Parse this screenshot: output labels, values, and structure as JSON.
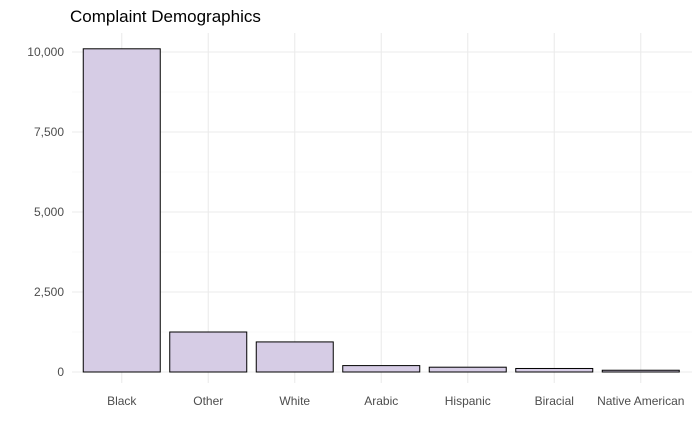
{
  "chart_data": {
    "type": "bar",
    "title": "Complaint Demographics",
    "xlabel": "",
    "ylabel": "",
    "categories": [
      "Black",
      "Other",
      "White",
      "Arabic",
      "Hispanic",
      "Biracial",
      "Native American"
    ],
    "values": [
      10100,
      1250,
      940,
      200,
      150,
      110,
      55
    ],
    "ylim": [
      0,
      10500
    ],
    "yticks": [
      0,
      2500,
      5000,
      7500,
      10000
    ],
    "ytick_labels": [
      "0",
      "2,500",
      "5,000",
      "7,500",
      "10,000"
    ],
    "grid": true,
    "legend": "none",
    "colors": {
      "bar_fill": "#d6cce5",
      "bar_stroke": "#000000",
      "grid": "#ebebeb"
    }
  }
}
